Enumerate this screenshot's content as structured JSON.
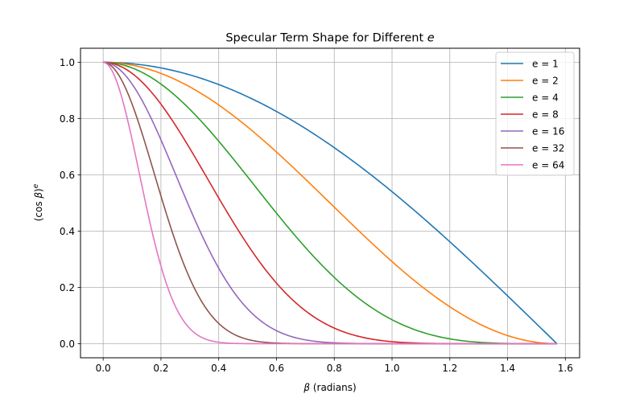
{
  "chart_data": {
    "type": "line",
    "title": "Specular Term Shape for Different ",
    "title_var": "e",
    "xlabel_var": "β",
    "xlabel_rest": " (radians)",
    "ylabel_left": "(cos ",
    "ylabel_var": "β",
    "ylabel_right": ")",
    "ylabel_sup": "e",
    "xlim": [
      -0.0785,
      1.6493
    ],
    "ylim": [
      -0.05,
      1.05
    ],
    "x_ticks": [
      0.0,
      0.2,
      0.4,
      0.6,
      0.8,
      1.0,
      1.2,
      1.4,
      1.6
    ],
    "x_tick_labels": [
      "0.0",
      "0.2",
      "0.4",
      "0.6",
      "0.8",
      "1.0",
      "1.2",
      "1.4",
      "1.6"
    ],
    "y_ticks": [
      0.0,
      0.2,
      0.4,
      0.6,
      0.8,
      1.0
    ],
    "y_tick_labels": [
      "0.0",
      "0.2",
      "0.4",
      "0.6",
      "0.8",
      "1.0"
    ],
    "grid": true,
    "legend_position": "top-right",
    "x_range": [
      0,
      1.5708
    ],
    "function": "cos(beta)^e",
    "series": [
      {
        "name": "e = 1",
        "e": 1,
        "color": "#1f77b4"
      },
      {
        "name": "e = 2",
        "e": 2,
        "color": "#ff7f0e"
      },
      {
        "name": "e = 4",
        "e": 4,
        "color": "#2ca02c"
      },
      {
        "name": "e = 8",
        "e": 8,
        "color": "#d62728"
      },
      {
        "name": "e = 16",
        "e": 16,
        "color": "#9467bd"
      },
      {
        "name": "e = 32",
        "e": 32,
        "color": "#8c564b"
      },
      {
        "name": "e = 64",
        "e": 64,
        "color": "#e377c2"
      }
    ]
  }
}
